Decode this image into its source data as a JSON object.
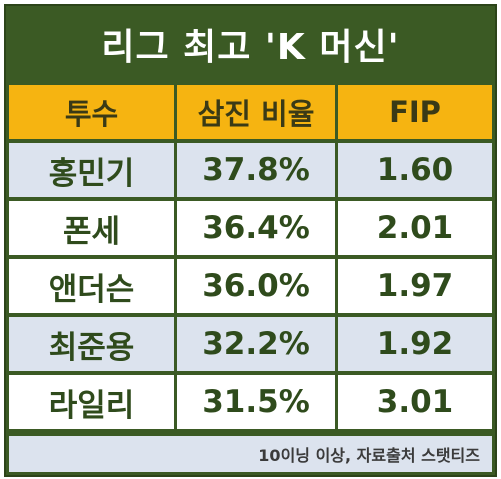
{
  "title": "리그 최고 'K 머신'",
  "headers": [
    "투수",
    "삼진 비율",
    "FIP"
  ],
  "rows": [
    {
      "pitcher": "홍민기",
      "k_rate": "37.8%",
      "fip": "1.60"
    },
    {
      "pitcher": "폰세",
      "k_rate": "36.4%",
      "fip": "2.01"
    },
    {
      "pitcher": "앤더슨",
      "k_rate": "36.0%",
      "fip": "1.97"
    },
    {
      "pitcher": "최준용",
      "k_rate": "32.2%",
      "fip": "1.92"
    },
    {
      "pitcher": "라일리",
      "k_rate": "31.5%",
      "fip": "3.01"
    }
  ],
  "footnote": "10이닝 이상, 자료출처 스탯티즈",
  "colors": {
    "frame": "#3b5a24",
    "header": "#f6b411",
    "row_alt": "#dce3ee",
    "text": "#2f4b1c"
  }
}
